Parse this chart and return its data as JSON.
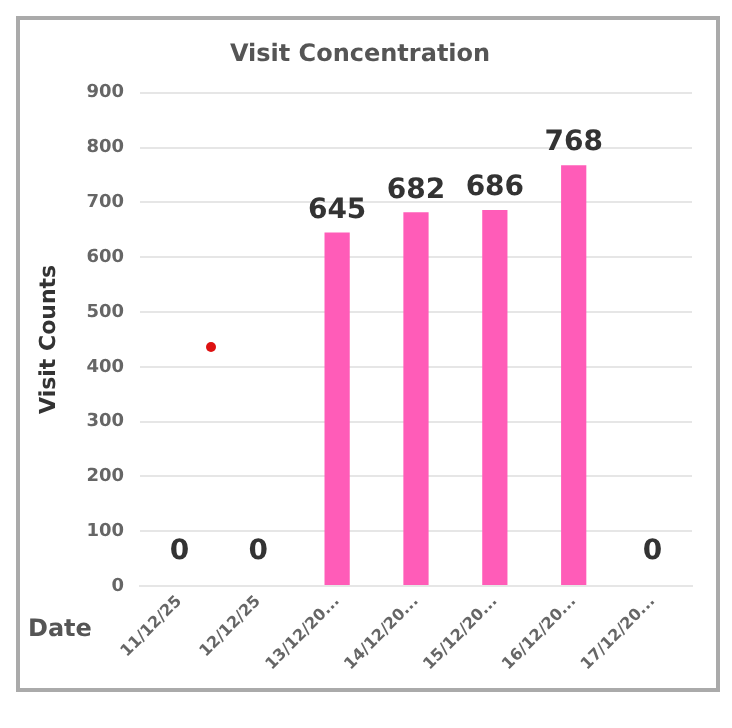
{
  "chart_data": {
    "type": "bar",
    "title": "Visit Concentration",
    "xlabel": "Date",
    "ylabel": "Visit Counts",
    "categories": [
      "11/12/25",
      "12/12/25",
      "13/12/20...",
      "14/12/20...",
      "15/12/20...",
      "16/12/20...",
      "17/12/20..."
    ],
    "values": [
      0,
      0,
      645,
      682,
      686,
      768,
      0
    ],
    "color": "#ff5cb8",
    "ylim": [
      0,
      900
    ],
    "yticks": [
      0,
      100,
      200,
      300,
      400,
      500,
      600,
      700,
      800,
      900
    ],
    "grid": "y",
    "data_labels": true,
    "legend": false
  }
}
